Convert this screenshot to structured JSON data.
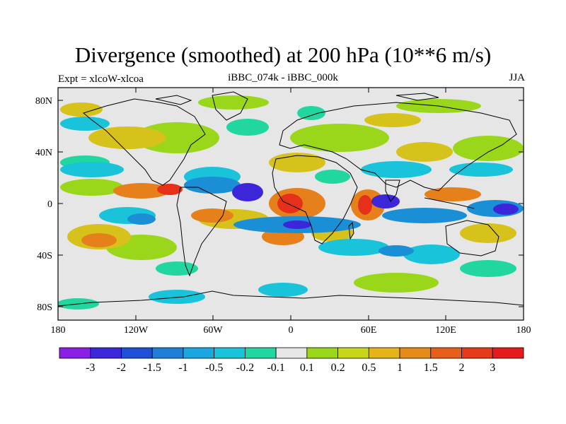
{
  "title": "Divergence (smoothed) at 200 hPa (10**6 m/s)",
  "subtitle_left": "Expt = xlcoW-xlcoa",
  "subtitle_center": "iBBC_074k - iBBC_000k",
  "subtitle_right": "JJA",
  "lon_ticks": [
    "180",
    "120W",
    "60W",
    "0",
    "60E",
    "120E",
    "180"
  ],
  "lat_ticks": [
    "80N",
    "40N",
    "0",
    "40S",
    "80S"
  ],
  "colorbar": {
    "labels": [
      "-3",
      "-2",
      "-1.5",
      "-1",
      "-0.5",
      "-0.2",
      "-0.1",
      "0.1",
      "0.2",
      "0.5",
      "1",
      "1.5",
      "2",
      "3"
    ],
    "colors": [
      "#8c1fe6",
      "#3b27d9",
      "#1f4fd6",
      "#1f7fd6",
      "#1aa6e0",
      "#19c3d9",
      "#22d6a0",
      "#e6e6e6",
      "#9ad61a",
      "#c8d61a",
      "#e6b419",
      "#e68a19",
      "#e6601a",
      "#e63a1a",
      "#e61a1a"
    ]
  },
  "map_colors": {
    "neutral": "#e6e6e6",
    "strong_pos": "#e61a1a",
    "pos": "#e6801a",
    "weak_pos": "#d6c21a",
    "light_pos": "#9ad61a",
    "light_neg": "#22d6a0",
    "weak_neg": "#19c3d9",
    "neg": "#1a8fd6",
    "strong_neg": "#3b27d9",
    "coast": "#000000"
  }
}
